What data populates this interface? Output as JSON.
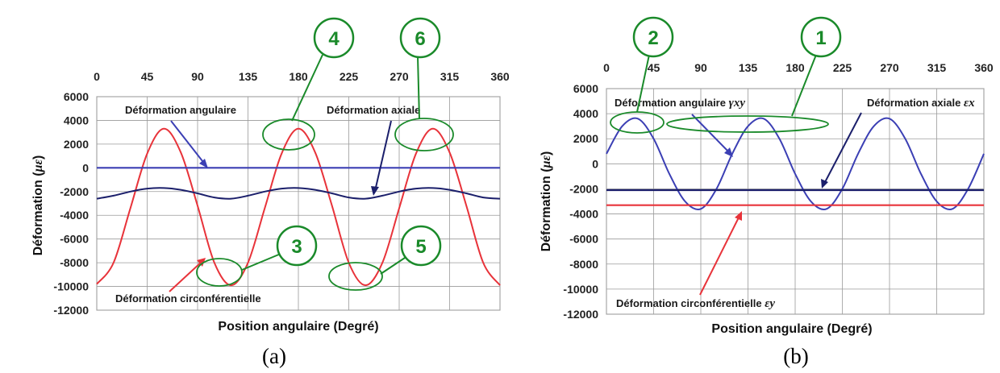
{
  "colors": {
    "red": "#e8333a",
    "blue": "#3b3fb4",
    "navy": "#1b1f6b",
    "green": "#1a8a2a",
    "grid": "#9a9a9a"
  },
  "chart_data": [
    {
      "panel_label": "(a)",
      "type": "line",
      "xlabel": "Position angulaire (Degré)",
      "ylabel": "Déformation (με)",
      "xlim": [
        0,
        360
      ],
      "ylim": [
        -12000,
        6000
      ],
      "x_ticks": [
        0,
        45,
        90,
        135,
        180,
        225,
        270,
        315,
        360
      ],
      "y_ticks": [
        6000,
        4000,
        2000,
        0,
        -2000,
        -4000,
        -6000,
        -8000,
        -10000,
        -12000
      ],
      "x_axis_position": "top",
      "grid": true,
      "series": [
        {
          "label": "Déformation circonférentielle",
          "color_key": "red",
          "x": [
            0,
            15,
            30,
            45,
            60,
            75,
            90,
            105,
            120,
            135,
            150,
            165,
            180,
            195,
            210,
            225,
            240,
            255,
            270,
            285,
            300,
            315,
            330,
            345,
            360
          ],
          "y": [
            -9800,
            -8000,
            -3400,
            1200,
            3300,
            1300,
            -3200,
            -8000,
            -9900,
            -8000,
            -3400,
            1200,
            3300,
            1300,
            -3200,
            -8000,
            -9900,
            -8000,
            -3400,
            1200,
            3300,
            1300,
            -3200,
            -8000,
            -9900
          ]
        },
        {
          "label": "Déformation angulaire",
          "color_key": "blue",
          "x": [
            0,
            360
          ],
          "y": [
            0,
            0
          ]
        },
        {
          "label": "Déformation axiale",
          "color_key": "navy",
          "x": [
            0,
            15,
            30,
            45,
            60,
            75,
            90,
            105,
            120,
            135,
            150,
            165,
            180,
            195,
            210,
            225,
            240,
            255,
            270,
            285,
            300,
            315,
            330,
            345,
            360
          ],
          "y": [
            -2600,
            -2350,
            -2000,
            -1750,
            -1700,
            -1850,
            -2150,
            -2500,
            -2600,
            -2350,
            -2000,
            -1750,
            -1700,
            -1850,
            -2150,
            -2500,
            -2600,
            -2350,
            -2000,
            -1750,
            -1700,
            -1850,
            -2150,
            -2500,
            -2600
          ]
        }
      ],
      "callouts": [
        {
          "number": "4",
          "ellipse_center": [
            180,
            3200
          ]
        },
        {
          "number": "6",
          "ellipse_center": [
            290,
            3200
          ]
        },
        {
          "number": "3",
          "ellipse_center": [
            115,
            -9800
          ]
        },
        {
          "number": "5",
          "ellipse_center": [
            235,
            -9800
          ]
        }
      ]
    },
    {
      "panel_label": "(b)",
      "type": "line",
      "xlabel": "Position angulaire (Degré)",
      "ylabel": "Déformation (με)",
      "xlim": [
        0,
        360
      ],
      "ylim": [
        -12000,
        6000
      ],
      "x_ticks": [
        0,
        45,
        90,
        135,
        180,
        225,
        270,
        315,
        360
      ],
      "y_ticks": [
        6000,
        4000,
        2000,
        0,
        -2000,
        -4000,
        -6000,
        -8000,
        -10000,
        -12000
      ],
      "x_axis_position": "top",
      "grid": true,
      "series": [
        {
          "label": "Déformation angulaire γxy",
          "label_main": "Déformation angulaire ",
          "label_math": "γxy",
          "color_key": "blue",
          "x": [
            0,
            15,
            30,
            45,
            60,
            75,
            90,
            105,
            120,
            135,
            150,
            165,
            180,
            195,
            210,
            225,
            240,
            255,
            270,
            285,
            300,
            315,
            330,
            345,
            360
          ],
          "y": [
            800,
            3000,
            3600,
            2000,
            -800,
            -3000,
            -3600,
            -2000,
            800,
            3000,
            3600,
            2000,
            -800,
            -3000,
            -3600,
            -2000,
            800,
            3000,
            3600,
            2000,
            -800,
            -3000,
            -3600,
            -2000,
            800
          ]
        },
        {
          "label": "Déformation axiale εx",
          "label_main": "Déformation axiale ",
          "label_math": "εx",
          "color_key": "navy",
          "x": [
            0,
            360
          ],
          "y": [
            -2100,
            -2100
          ]
        },
        {
          "label": "Déformation circonférentielle εy",
          "label_main": "Déformation circonférentielle ",
          "label_math": "εy",
          "color_key": "red",
          "x": [
            0,
            360
          ],
          "y": [
            -3300,
            -3300
          ]
        }
      ],
      "callouts": [
        {
          "number": "2",
          "ellipse_center": [
            22,
            3500
          ]
        },
        {
          "number": "1",
          "ellipse_center": [
            142,
            3600
          ]
        }
      ]
    }
  ]
}
